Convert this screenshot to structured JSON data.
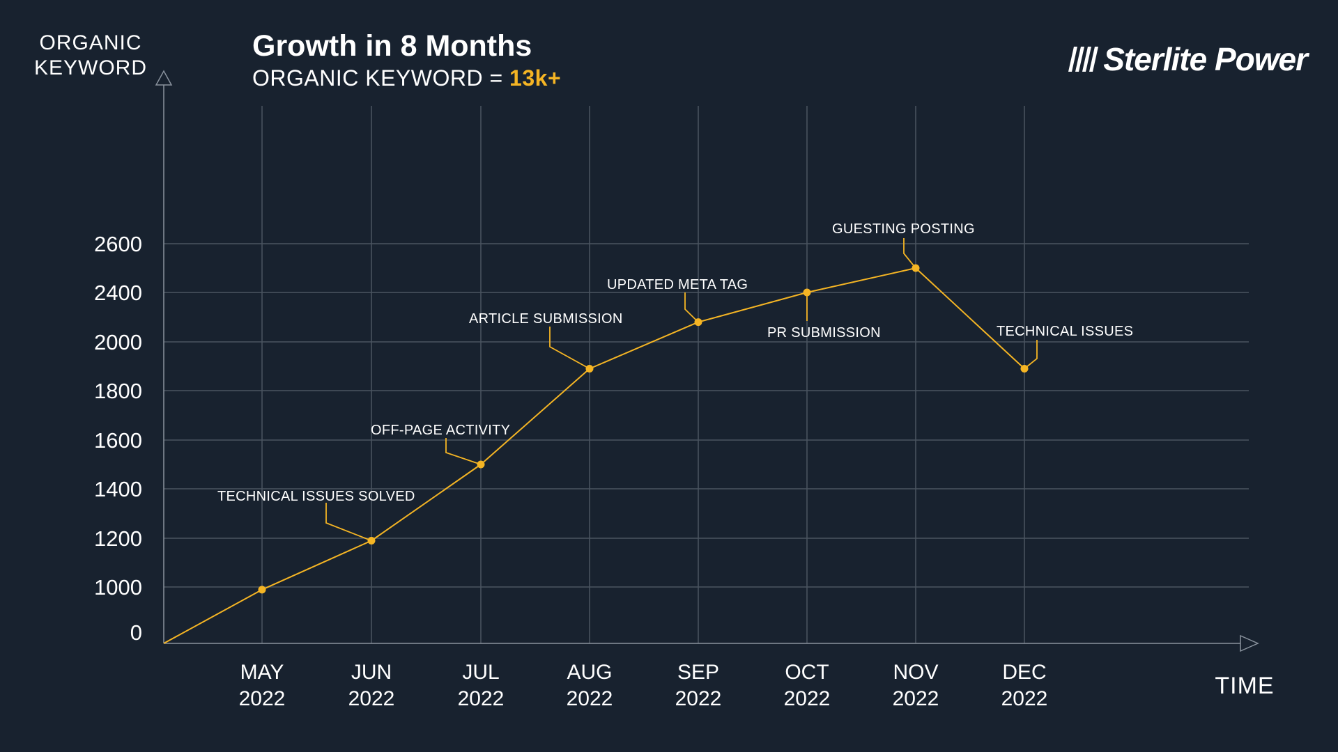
{
  "header": {
    "y_axis_title_line1": "ORGANIC",
    "y_axis_title_line2": "KEYWORD",
    "title": "Growth in 8 Months",
    "subtitle_prefix": "ORGANIC KEYWORD = ",
    "subtitle_value": "13k+",
    "logo_text": "Sterlite Power",
    "x_axis_title": "TIME"
  },
  "colors": {
    "background": "#18222f",
    "line": "#f5b524",
    "grid": "#4a5460",
    "text": "#ffffff"
  },
  "chart_data": {
    "type": "line",
    "title": "Growth in 8 Months",
    "subtitle": "ORGANIC KEYWORD = 13k+",
    "xlabel": "TIME",
    "ylabel": "ORGANIC KEYWORD",
    "y_ticks": [
      "0",
      "1000",
      "1200",
      "1400",
      "1600",
      "1800",
      "2000",
      "2400",
      "2600"
    ],
    "categories": [
      {
        "month": "MAY",
        "year": "2022"
      },
      {
        "month": "JUN",
        "year": "2022"
      },
      {
        "month": "JUL",
        "year": "2022"
      },
      {
        "month": "AUG",
        "year": "2022"
      },
      {
        "month": "SEP",
        "year": "2022"
      },
      {
        "month": "OCT",
        "year": "2022"
      },
      {
        "month": "NOV",
        "year": "2022"
      },
      {
        "month": "DEC",
        "year": "2022"
      }
    ],
    "series": [
      {
        "name": "Organic Keywords",
        "values": [
          940,
          1190,
          1500,
          1890,
          2160,
          2400,
          2500,
          1890
        ]
      }
    ],
    "annotations": [
      {
        "label": "TECHNICAL ISSUES SOLVED",
        "point_index": 1
      },
      {
        "label": "OFF-PAGE ACTIVITY",
        "point_index": 2
      },
      {
        "label": "ARTICLE SUBMISSION",
        "point_index": 3
      },
      {
        "label": "UPDATED META TAG",
        "point_index": 4
      },
      {
        "label": "PR SUBMISSION",
        "point_index": 5
      },
      {
        "label": "GUESTING POSTING",
        "point_index": 6
      },
      {
        "label": "TECHNICAL ISSUES",
        "point_index": 7
      }
    ],
    "grid": true
  }
}
